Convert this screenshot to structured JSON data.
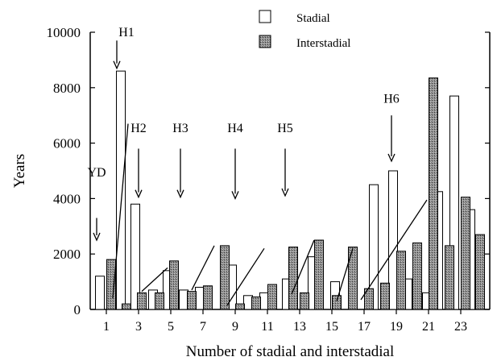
{
  "chart_data": {
    "type": "bar",
    "xlabel": "Number of stadial and interstadial",
    "ylabel": "Years",
    "ylim": [
      0,
      10000
    ],
    "yticks": [
      0,
      2000,
      4000,
      6000,
      8000,
      10000
    ],
    "xticks": [
      1,
      3,
      5,
      7,
      9,
      11,
      13,
      15,
      17,
      19,
      21,
      23
    ],
    "xlim": [
      0,
      24.8
    ],
    "legend_position": "top-center",
    "series": [
      {
        "name": "Stadial",
        "style": "open",
        "x": [
          0.6,
          1.9,
          2.8,
          3.9,
          4.8,
          5.8,
          6.8,
          8.8,
          9.8,
          10.8,
          12.2,
          13.8,
          15.2,
          17.6,
          18.8,
          19.7,
          20.9,
          21.6,
          22.6,
          23.6
        ],
        "values": [
          1200,
          8600,
          3800,
          700,
          1400,
          700,
          800,
          1600,
          500,
          600,
          1100,
          1900,
          1000,
          4500,
          5000,
          1100,
          600,
          4250,
          7700,
          3600
        ]
      },
      {
        "name": "Interstadial",
        "style": "shaded",
        "x": [
          1.3,
          2.25,
          3.2,
          4.3,
          5.2,
          6.3,
          7.3,
          8.35,
          9.3,
          10.3,
          11.3,
          12.6,
          13.3,
          14.2,
          15.3,
          16.3,
          17.3,
          18.3,
          19.3,
          20.3,
          21.3,
          22.3,
          23.3,
          24.2
        ],
        "values": [
          1800,
          200,
          600,
          600,
          1750,
          650,
          850,
          2300,
          200,
          450,
          900,
          2250,
          600,
          2500,
          500,
          2250,
          750,
          950,
          2100,
          2400,
          8350,
          2300,
          4050,
          2700
        ]
      }
    ],
    "trend_lines": [
      [
        [
          1.4,
          400
        ],
        [
          2.35,
          6700
        ]
      ],
      [
        [
          3.2,
          650
        ],
        [
          4.8,
          1500
        ]
      ],
      [
        [
          6.3,
          700
        ],
        [
          7.7,
          2300
        ]
      ],
      [
        [
          8.5,
          150
        ],
        [
          10.8,
          2200
        ]
      ],
      [
        [
          12.5,
          550
        ],
        [
          13.9,
          2500
        ]
      ],
      [
        [
          15.3,
          300
        ],
        [
          16.3,
          2200
        ]
      ],
      [
        [
          16.8,
          350
        ],
        [
          20.9,
          3950
        ]
      ]
    ],
    "events": [
      {
        "label": "YD",
        "x": 0.4,
        "label_y": 4800,
        "arrow_top": 3300,
        "arrow_bottom": 2500
      },
      {
        "label": "H1",
        "x": 1.65,
        "label_y": 9850,
        "arrow_top": 9700,
        "arrow_bottom": 8700
      },
      {
        "label": "H2",
        "x": 3.0,
        "label_y": 6400,
        "arrow_top": 5800,
        "arrow_bottom": 4050
      },
      {
        "label": "H3",
        "x": 5.6,
        "label_y": 6400,
        "arrow_top": 5800,
        "arrow_bottom": 4050
      },
      {
        "label": "H4",
        "x": 9.0,
        "label_y": 6400,
        "arrow_top": 5800,
        "arrow_bottom": 4000
      },
      {
        "label": "H5",
        "x": 12.1,
        "label_y": 6400,
        "arrow_top": 5800,
        "arrow_bottom": 4100
      },
      {
        "label": "H6",
        "x": 18.7,
        "label_y": 7450,
        "arrow_top": 7000,
        "arrow_bottom": 5350
      }
    ]
  }
}
